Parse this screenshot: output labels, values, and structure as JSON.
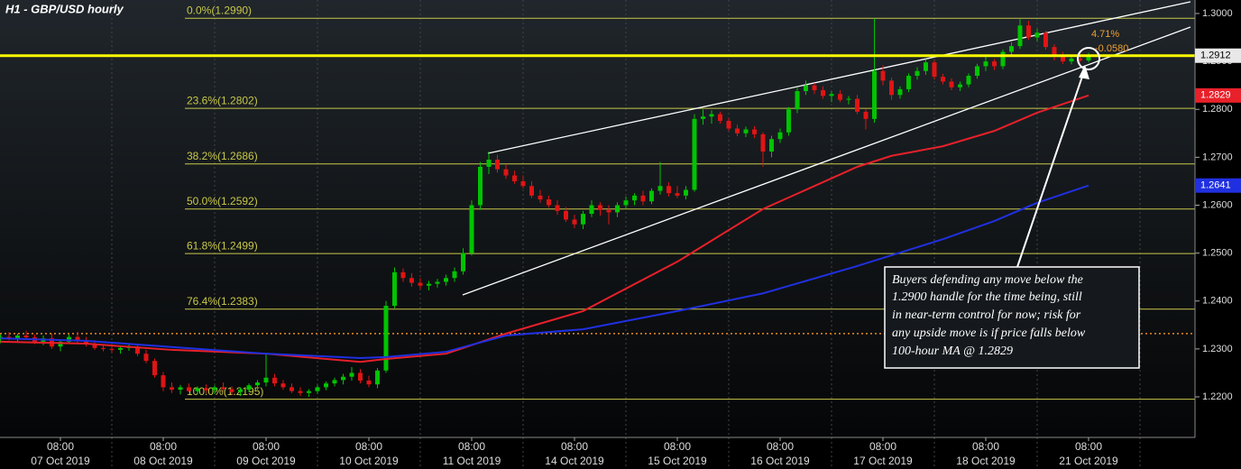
{
  "chart_data": {
    "type": "candlestick",
    "title": "H1 - GBP/USD hourly",
    "up_color": "#00c400",
    "down_color": "#e01414",
    "ylim": [
      1.21153,
      1.30282
    ],
    "yticks": [
      {
        "value": 1.22,
        "label": "1.2200"
      },
      {
        "value": 1.23,
        "label": "1.2300"
      },
      {
        "value": 1.24,
        "label": "1.2400"
      },
      {
        "value": 1.25,
        "label": "1.2500"
      },
      {
        "value": 1.26,
        "label": "1.2600"
      },
      {
        "value": 1.27,
        "label": "1.2700"
      },
      {
        "value": 1.28,
        "label": "1.2800"
      },
      {
        "value": 1.29,
        "label": "1.2900"
      },
      {
        "value": 1.3,
        "label": "1.3000"
      }
    ],
    "xticks": [
      {
        "value": 7,
        "label": "08:00",
        "date": "07 Oct 2019"
      },
      {
        "value": 19,
        "label": "08:00",
        "date": "08 Oct 2019"
      },
      {
        "value": 31,
        "label": "08:00",
        "date": "09 Oct 2019"
      },
      {
        "value": 43,
        "label": "08:00",
        "date": "10 Oct 2019"
      },
      {
        "value": 55,
        "label": "08:00",
        "date": "11 Oct 2019"
      },
      {
        "value": 67,
        "label": "08:00",
        "date": "14 Oct 2019"
      },
      {
        "value": 79,
        "label": "08:00",
        "date": "15 Oct 2019"
      },
      {
        "value": 91,
        "label": "08:00",
        "date": "16 Oct 2019"
      },
      {
        "value": 103,
        "label": "08:00",
        "date": "17 Oct 2019"
      },
      {
        "value": 115,
        "label": "08:00",
        "date": "18 Oct 2019"
      },
      {
        "value": 127,
        "label": "08:00",
        "date": "21 Oct 2019"
      }
    ],
    "ohlc": [
      [
        1.232,
        1.233,
        1.2312,
        1.2325
      ],
      [
        1.2325,
        1.2335,
        1.2318,
        1.2322
      ],
      [
        1.2322,
        1.2332,
        1.2315,
        1.2328
      ],
      [
        1.2328,
        1.2338,
        1.232,
        1.2324
      ],
      [
        1.2324,
        1.233,
        1.231,
        1.2315
      ],
      [
        1.2315,
        1.2328,
        1.2308,
        1.2322
      ],
      [
        1.2322,
        1.2332,
        1.23,
        1.2305
      ],
      [
        1.2305,
        1.232,
        1.2295,
        1.2315
      ],
      [
        1.2315,
        1.233,
        1.231,
        1.2325
      ],
      [
        1.2325,
        1.2336,
        1.2312,
        1.2318
      ],
      [
        1.2318,
        1.2325,
        1.2305,
        1.231
      ],
      [
        1.231,
        1.2318,
        1.2298,
        1.2302
      ],
      [
        1.2302,
        1.231,
        1.2295,
        1.23
      ],
      [
        1.23,
        1.2308,
        1.2292,
        1.2298
      ],
      [
        1.2298,
        1.2306,
        1.229,
        1.2302
      ],
      [
        1.2302,
        1.231,
        1.2296,
        1.2305
      ],
      [
        1.2305,
        1.2308,
        1.2285,
        1.229
      ],
      [
        1.229,
        1.2298,
        1.227,
        1.2275
      ],
      [
        1.2275,
        1.228,
        1.224,
        1.2245
      ],
      [
        1.2245,
        1.2252,
        1.2212,
        1.222
      ],
      [
        1.222,
        1.223,
        1.2208,
        1.2215
      ],
      [
        1.2215,
        1.2225,
        1.2205,
        1.222
      ],
      [
        1.222,
        1.2228,
        1.221,
        1.2212
      ],
      [
        1.2212,
        1.2222,
        1.2205,
        1.2218
      ],
      [
        1.2218,
        1.2226,
        1.2208,
        1.2214
      ],
      [
        1.2214,
        1.2224,
        1.2206,
        1.222
      ],
      [
        1.222,
        1.223,
        1.2212,
        1.2216
      ],
      [
        1.2216,
        1.2222,
        1.2204,
        1.221
      ],
      [
        1.221,
        1.222,
        1.2202,
        1.2215
      ],
      [
        1.2215,
        1.2228,
        1.221,
        1.2224
      ],
      [
        1.2224,
        1.2235,
        1.2215,
        1.223
      ],
      [
        1.223,
        1.229,
        1.2222,
        1.224
      ],
      [
        1.224,
        1.2248,
        1.2222,
        1.2228
      ],
      [
        1.2228,
        1.2235,
        1.2215,
        1.222
      ],
      [
        1.222,
        1.2228,
        1.2208,
        1.2212
      ],
      [
        1.2212,
        1.222,
        1.2202,
        1.2208
      ],
      [
        1.2208,
        1.2216,
        1.22,
        1.2212
      ],
      [
        1.2212,
        1.2225,
        1.2206,
        1.222
      ],
      [
        1.222,
        1.2232,
        1.2214,
        1.2228
      ],
      [
        1.2228,
        1.224,
        1.2222,
        1.2235
      ],
      [
        1.2235,
        1.2248,
        1.2226,
        1.2242
      ],
      [
        1.2242,
        1.2262,
        1.2234,
        1.225
      ],
      [
        1.225,
        1.2258,
        1.2228,
        1.2234
      ],
      [
        1.2234,
        1.2244,
        1.222,
        1.2226
      ],
      [
        1.2226,
        1.226,
        1.2218,
        1.2255
      ],
      [
        1.2255,
        1.24,
        1.225,
        1.239
      ],
      [
        1.239,
        1.247,
        1.2385,
        1.246
      ],
      [
        1.246,
        1.2468,
        1.244,
        1.2448
      ],
      [
        1.2448,
        1.2458,
        1.243,
        1.2438
      ],
      [
        1.2438,
        1.2448,
        1.2425,
        1.2432
      ],
      [
        1.2432,
        1.2442,
        1.2422,
        1.2436
      ],
      [
        1.2436,
        1.2446,
        1.2428,
        1.244
      ],
      [
        1.244,
        1.2455,
        1.2432,
        1.2448
      ],
      [
        1.2448,
        1.247,
        1.244,
        1.2462
      ],
      [
        1.2462,
        1.251,
        1.2455,
        1.25
      ],
      [
        1.25,
        1.261,
        1.2495,
        1.26
      ],
      [
        1.26,
        1.269,
        1.259,
        1.268
      ],
      [
        1.268,
        1.2712,
        1.2665,
        1.2695
      ],
      [
        1.2695,
        1.2705,
        1.2668,
        1.2675
      ],
      [
        1.2675,
        1.2685,
        1.2655,
        1.2662
      ],
      [
        1.2662,
        1.2672,
        1.2645,
        1.265
      ],
      [
        1.265,
        1.2662,
        1.2635,
        1.264
      ],
      [
        1.264,
        1.265,
        1.2615,
        1.262
      ],
      [
        1.262,
        1.2632,
        1.2605,
        1.2612
      ],
      [
        1.2612,
        1.262,
        1.2595,
        1.26
      ],
      [
        1.26,
        1.261,
        1.258,
        1.2588
      ],
      [
        1.2588,
        1.2596,
        1.2565,
        1.257
      ],
      [
        1.257,
        1.258,
        1.2552,
        1.256
      ],
      [
        1.256,
        1.2588,
        1.255,
        1.2582
      ],
      [
        1.2582,
        1.261,
        1.2575,
        1.26
      ],
      [
        1.26,
        1.2606,
        1.2578,
        1.259
      ],
      [
        1.259,
        1.26,
        1.256,
        1.2585
      ],
      [
        1.2585,
        1.2606,
        1.2575,
        1.26
      ],
      [
        1.26,
        1.2618,
        1.2592,
        1.261
      ],
      [
        1.261,
        1.2625,
        1.26,
        1.262
      ],
      [
        1.262,
        1.263,
        1.26,
        1.2608
      ],
      [
        1.2608,
        1.2635,
        1.2602,
        1.263
      ],
      [
        1.263,
        1.269,
        1.2622,
        1.264
      ],
      [
        1.264,
        1.2648,
        1.2618,
        1.2625
      ],
      [
        1.2625,
        1.264,
        1.2615,
        1.262
      ],
      [
        1.262,
        1.264,
        1.2612,
        1.2632
      ],
      [
        1.2632,
        1.279,
        1.2628,
        1.278
      ],
      [
        1.278,
        1.28,
        1.2768,
        1.2785
      ],
      [
        1.2785,
        1.2798,
        1.277,
        1.279
      ],
      [
        1.279,
        1.2795,
        1.277,
        1.2776
      ],
      [
        1.2776,
        1.2782,
        1.2755,
        1.276
      ],
      [
        1.276,
        1.2768,
        1.2744,
        1.275
      ],
      [
        1.275,
        1.2764,
        1.2742,
        1.2758
      ],
      [
        1.2758,
        1.2765,
        1.274,
        1.2748
      ],
      [
        1.2748,
        1.2752,
        1.268,
        1.2712
      ],
      [
        1.2712,
        1.2745,
        1.27,
        1.2738
      ],
      [
        1.2738,
        1.276,
        1.273,
        1.2752
      ],
      [
        1.2752,
        1.2805,
        1.2745,
        1.28
      ],
      [
        1.28,
        1.2845,
        1.2792,
        1.2838
      ],
      [
        1.2838,
        1.286,
        1.283,
        1.285
      ],
      [
        1.285,
        1.2855,
        1.2832,
        1.284
      ],
      [
        1.284,
        1.2848,
        1.2822,
        1.2828
      ],
      [
        1.2828,
        1.2838,
        1.2815,
        1.2832
      ],
      [
        1.2832,
        1.284,
        1.2815,
        1.282
      ],
      [
        1.282,
        1.2828,
        1.281,
        1.2822
      ],
      [
        1.2822,
        1.283,
        1.279,
        1.2795
      ],
      [
        1.2795,
        1.28,
        1.2758,
        1.278
      ],
      [
        1.278,
        1.299,
        1.2772,
        1.288
      ],
      [
        1.288,
        1.2892,
        1.285,
        1.286
      ],
      [
        1.286,
        1.2866,
        1.282,
        1.283
      ],
      [
        1.283,
        1.2848,
        1.2822,
        1.2842
      ],
      [
        1.2842,
        1.2875,
        1.2836,
        1.287
      ],
      [
        1.287,
        1.2888,
        1.2862,
        1.288
      ],
      [
        1.288,
        1.2905,
        1.2872,
        1.2898
      ],
      [
        1.2898,
        1.2902,
        1.2862,
        1.2868
      ],
      [
        1.2868,
        1.2874,
        1.2852,
        1.2858
      ],
      [
        1.2858,
        1.2865,
        1.284,
        1.2846
      ],
      [
        1.2846,
        1.2858,
        1.2838,
        1.2852
      ],
      [
        1.2852,
        1.2875,
        1.2846,
        1.287
      ],
      [
        1.287,
        1.2895,
        1.2864,
        1.289
      ],
      [
        1.289,
        1.291,
        1.288,
        1.29
      ],
      [
        1.29,
        1.2905,
        1.2882,
        1.289
      ],
      [
        1.289,
        1.2925,
        1.2884,
        1.292
      ],
      [
        1.292,
        1.294,
        1.2912,
        1.2932
      ],
      [
        1.2932,
        1.2988,
        1.2926,
        1.2975
      ],
      [
        1.2975,
        1.2985,
        1.2945,
        1.295
      ],
      [
        1.295,
        1.2968,
        1.2942,
        1.296
      ],
      [
        1.296,
        1.2964,
        1.2925,
        1.293
      ],
      [
        1.293,
        1.2936,
        1.2902,
        1.291
      ],
      [
        1.291,
        1.292,
        1.2895,
        1.29
      ],
      [
        1.29,
        1.2912,
        1.2894,
        1.2906
      ],
      [
        1.2906,
        1.2916,
        1.2898,
        1.2902
      ],
      [
        1.2902,
        1.2918,
        1.2898,
        1.2912
      ]
    ],
    "moving_averages": [
      {
        "color": "#e8202a",
        "x": [
          0,
          10,
          20,
          31,
          42,
          45,
          52,
          59,
          68,
          79,
          89,
          100,
          104,
          110,
          116,
          121,
          127
        ],
        "values": [
          1.2315,
          1.2311,
          1.2298,
          1.229,
          1.2273,
          1.2279,
          1.229,
          1.2332,
          1.2379,
          1.2482,
          1.2592,
          1.268,
          1.2703,
          1.2723,
          1.2755,
          1.2793,
          1.2829
        ]
      },
      {
        "color": "#2030e0",
        "x": [
          0,
          10,
          20,
          31,
          42,
          45,
          52,
          59,
          68,
          79,
          89,
          100,
          110,
          116,
          121,
          127
        ],
        "values": [
          1.2322,
          1.2317,
          1.2304,
          1.229,
          1.2281,
          1.2283,
          1.2294,
          1.2328,
          1.2341,
          1.2379,
          1.2416,
          1.2473,
          1.2529,
          1.2567,
          1.2605,
          1.2641
        ]
      }
    ],
    "current_price": 1.2912,
    "reference_line": 1.2332,
    "fib_color": "#c8c84a",
    "fib_levels": [
      {
        "value": 1.299,
        "label": "0.0%(1.2990)"
      },
      {
        "value": 1.2802,
        "label": "23.6%(1.2802)"
      },
      {
        "value": 1.2686,
        "label": "38.2%(1.2686)"
      },
      {
        "value": 1.2592,
        "label": "50.0%(1.2592)"
      },
      {
        "value": 1.2499,
        "label": "61.8%(1.2499)"
      },
      {
        "value": 1.2383,
        "label": "76.4%(1.2383)"
      },
      {
        "value": 1.2195,
        "label": "100.0%(1.2195)"
      }
    ],
    "measure_labels": [
      "4.71%",
      "-0.0580"
    ],
    "annotation": [
      "Buyers defending any move below the",
      "1.2900 handle for the time being, still",
      "in near-term control for now; risk for",
      "any upside move is if price falls below",
      "100-hour MA @ 1.2829"
    ]
  }
}
